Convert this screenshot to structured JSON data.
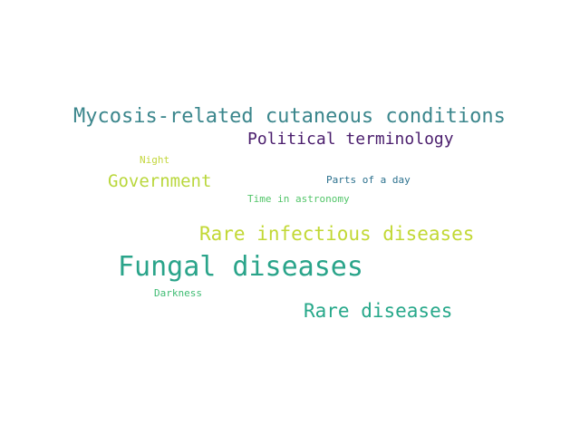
{
  "words": [
    {
      "text": "Mycosis-related cutaneous conditions",
      "color": "#3b868c"
    },
    {
      "text": "Political terminology",
      "color": "#4b1e6d"
    },
    {
      "text": "Night",
      "color": "#c3d63c"
    },
    {
      "text": "Government",
      "color": "#b9d73c"
    },
    {
      "text": "Parts of a day",
      "color": "#2c718e"
    },
    {
      "text": "Time in astronomy",
      "color": "#52c569"
    },
    {
      "text": "Rare infectious diseases",
      "color": "#c2d834"
    },
    {
      "text": "Fungal diseases",
      "color": "#2aa48a"
    },
    {
      "text": "Darkness",
      "color": "#3fbc73"
    },
    {
      "text": "Rare diseases",
      "color": "#27a88a"
    }
  ]
}
